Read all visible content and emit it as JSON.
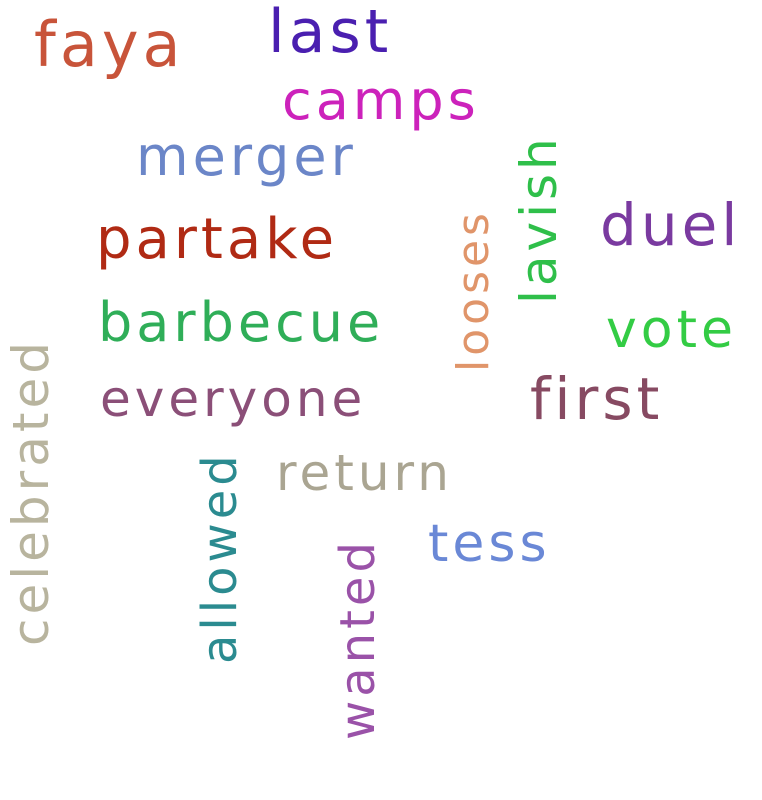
{
  "words": [
    {
      "text": "faya",
      "color": "#c8543a"
    },
    {
      "text": "last",
      "color": "#4a1fb0"
    },
    {
      "text": "camps",
      "color": "#cc22bb"
    },
    {
      "text": "merger",
      "color": "#6b86c8"
    },
    {
      "text": "partake",
      "color": "#b02a14"
    },
    {
      "text": "barbecue",
      "color": "#2fae58"
    },
    {
      "text": "everyone",
      "color": "#8b4f78"
    },
    {
      "text": "return",
      "color": "#aaa592"
    },
    {
      "text": "tess",
      "color": "#6a88d6"
    },
    {
      "text": "duel",
      "color": "#7a3aa0"
    },
    {
      "text": "vote",
      "color": "#33cc44"
    },
    {
      "text": "first",
      "color": "#874a62"
    },
    {
      "text": "looses",
      "color": "#e0956a"
    },
    {
      "text": "lavish",
      "color": "#2fbf4a"
    },
    {
      "text": "celebrated",
      "color": "#b8b49e"
    },
    {
      "text": "allowed",
      "color": "#2b8b90"
    },
    {
      "text": "wanted",
      "color": "#9a52a8"
    }
  ]
}
